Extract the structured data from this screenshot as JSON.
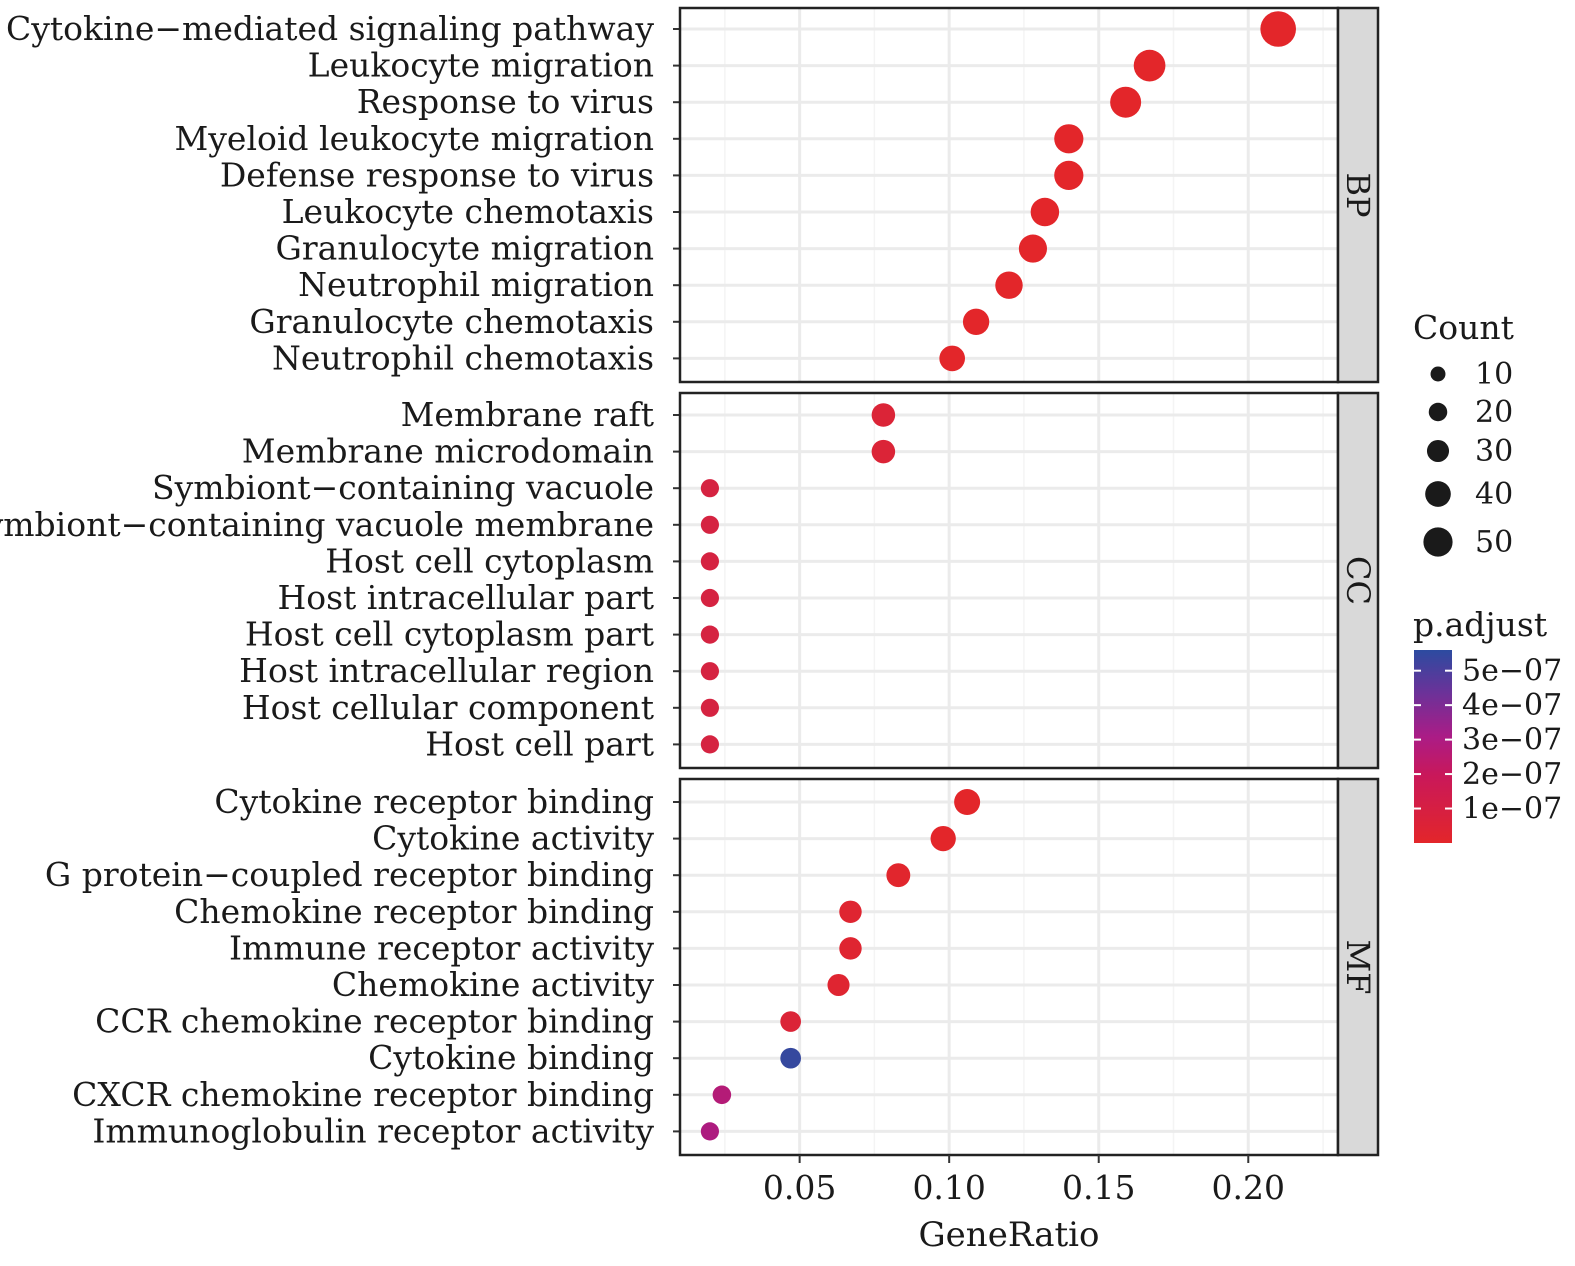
{
  "chart_data": {
    "type": "scatter",
    "subtype": "dotplot",
    "xlabel": "GeneRatio",
    "xlim": [
      0.01,
      0.23
    ],
    "xticks": [
      0.05,
      0.1,
      0.15,
      0.2
    ],
    "xtick_labels": [
      "0.05",
      "0.10",
      "0.15",
      "0.20"
    ],
    "grid": true,
    "facets": [
      {
        "name": "BP",
        "terms": [
          {
            "label": "Cytokine−mediated signaling pathway",
            "gene_ratio": 0.21,
            "count": 54,
            "p_adjust": 1e-09
          },
          {
            "label": "Leukocyte migration",
            "gene_ratio": 0.167,
            "count": 43,
            "p_adjust": 1e-09
          },
          {
            "label": "Response to virus",
            "gene_ratio": 0.159,
            "count": 41,
            "p_adjust": 1e-09
          },
          {
            "label": "Myeloid leukocyte migration",
            "gene_ratio": 0.14,
            "count": 36,
            "p_adjust": 1e-09
          },
          {
            "label": "Defense response to virus",
            "gene_ratio": 0.14,
            "count": 36,
            "p_adjust": 1e-09
          },
          {
            "label": "Leukocyte chemotaxis",
            "gene_ratio": 0.132,
            "count": 34,
            "p_adjust": 1e-09
          },
          {
            "label": "Granulocyte migration",
            "gene_ratio": 0.128,
            "count": 33,
            "p_adjust": 1e-09
          },
          {
            "label": "Neutrophil migration",
            "gene_ratio": 0.12,
            "count": 31,
            "p_adjust": 1e-09
          },
          {
            "label": "Granulocyte chemotaxis",
            "gene_ratio": 0.109,
            "count": 28,
            "p_adjust": 1e-09
          },
          {
            "label": "Neutrophil chemotaxis",
            "gene_ratio": 0.101,
            "count": 26,
            "p_adjust": 1e-09
          }
        ]
      },
      {
        "name": "CC",
        "terms": [
          {
            "label": "Membrane raft",
            "gene_ratio": 0.078,
            "count": 20,
            "p_adjust": 4e-08
          },
          {
            "label": "Membrane microdomain",
            "gene_ratio": 0.078,
            "count": 20,
            "p_adjust": 4e-08
          },
          {
            "label": "Symbiont−containing vacuole",
            "gene_ratio": 0.02,
            "count": 5,
            "p_adjust": 7e-08
          },
          {
            "label": "Symbiont−containing vacuole membrane",
            "gene_ratio": 0.02,
            "count": 5,
            "p_adjust": 7e-08
          },
          {
            "label": "Host cell cytoplasm",
            "gene_ratio": 0.02,
            "count": 5,
            "p_adjust": 7e-08
          },
          {
            "label": "Host intracellular part",
            "gene_ratio": 0.02,
            "count": 5,
            "p_adjust": 7e-08
          },
          {
            "label": "Host cell cytoplasm part",
            "gene_ratio": 0.02,
            "count": 5,
            "p_adjust": 7e-08
          },
          {
            "label": "Host intracellular region",
            "gene_ratio": 0.02,
            "count": 5,
            "p_adjust": 7e-08
          },
          {
            "label": "Host cellular component",
            "gene_ratio": 0.02,
            "count": 5,
            "p_adjust": 7e-08
          },
          {
            "label": "Host cell part",
            "gene_ratio": 0.02,
            "count": 5,
            "p_adjust": 7e-08
          }
        ]
      },
      {
        "name": "MF",
        "terms": [
          {
            "label": "Cytokine receptor binding",
            "gene_ratio": 0.106,
            "count": 27,
            "p_adjust": 1e-09
          },
          {
            "label": "Cytokine activity",
            "gene_ratio": 0.098,
            "count": 25,
            "p_adjust": 1e-09
          },
          {
            "label": "G protein−coupled receptor binding",
            "gene_ratio": 0.083,
            "count": 21,
            "p_adjust": 1e-08
          },
          {
            "label": "Chemokine receptor binding",
            "gene_ratio": 0.067,
            "count": 17,
            "p_adjust": 2e-08
          },
          {
            "label": "Immune receptor activity",
            "gene_ratio": 0.067,
            "count": 17,
            "p_adjust": 2e-08
          },
          {
            "label": "Chemokine activity",
            "gene_ratio": 0.063,
            "count": 16,
            "p_adjust": 2e-08
          },
          {
            "label": "CCR chemokine receptor binding",
            "gene_ratio": 0.047,
            "count": 12,
            "p_adjust": 4e-08
          },
          {
            "label": "Cytokine binding",
            "gene_ratio": 0.047,
            "count": 12,
            "p_adjust": 5.4e-07
          },
          {
            "label": "CXCR chemokine receptor binding",
            "gene_ratio": 0.024,
            "count": 6,
            "p_adjust": 2.3e-07
          },
          {
            "label": "Immunoglobulin receptor activity",
            "gene_ratio": 0.02,
            "count": 5,
            "p_adjust": 2.6e-07
          }
        ]
      }
    ],
    "legend": {
      "placement": "right",
      "size": {
        "title": "Count",
        "values": [
          10,
          20,
          30,
          40,
          50
        ],
        "labels": [
          "10",
          "20",
          "30",
          "40",
          "50"
        ]
      },
      "color": {
        "title": "p.adjust",
        "range": [
          0,
          5.6e-07
        ],
        "ticks": [
          5e-07,
          4e-07,
          3e-07,
          2e-07,
          1e-07
        ],
        "labels": [
          "5e−07",
          "4e−07",
          "3e−07",
          "2e−07",
          "1e−07"
        ],
        "low_color": "#e3262a",
        "mid_color": "#b01a7e",
        "high_color": "#2c4ba0"
      }
    },
    "colors": {
      "panel_background": "#ffffff",
      "grid_major": "#ebebeb",
      "grid_minor": "#f4f4f4",
      "strip_background": "#d9d9d9",
      "border": "#222222"
    }
  }
}
